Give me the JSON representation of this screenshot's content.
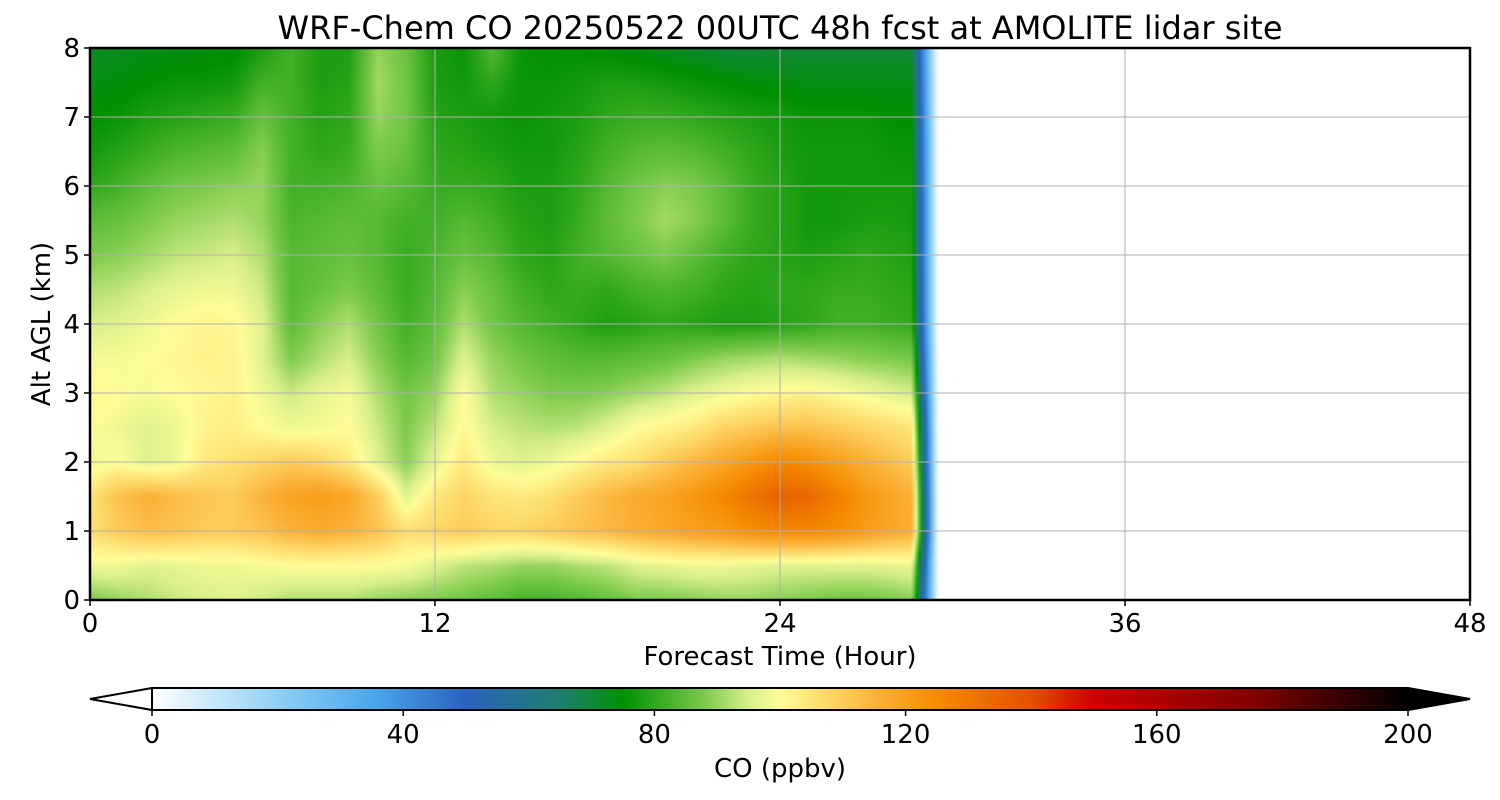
{
  "chart_data": {
    "type": "heatmap",
    "title": "WRF-Chem CO  20250522 00UTC 48h fcst at AMOLITE lidar site",
    "xlabel": "Forecast Time (Hour)",
    "ylabel": "Alt AGL (km)",
    "xlim": [
      0,
      48
    ],
    "ylim": [
      0,
      8
    ],
    "xticks": [
      0,
      12,
      24,
      36,
      48
    ],
    "yticks": [
      0,
      1,
      2,
      3,
      4,
      5,
      6,
      7,
      8
    ],
    "grid": true,
    "data_end_hour": 29.5,
    "colorbar": {
      "label": "CO  (ppbv)",
      "vmin": 0,
      "vmax": 200,
      "ticks": [
        0,
        40,
        80,
        120,
        160,
        200
      ],
      "extend": "both",
      "orientation": "horizontal",
      "colormap_stops": [
        {
          "value": 0,
          "color": "#ffffff"
        },
        {
          "value": 20,
          "color": "#8fd0f5"
        },
        {
          "value": 35,
          "color": "#4aa8ec"
        },
        {
          "value": 50,
          "color": "#2a62bf"
        },
        {
          "value": 65,
          "color": "#1e7f6e"
        },
        {
          "value": 75,
          "color": "#009100"
        },
        {
          "value": 88,
          "color": "#7cca4c"
        },
        {
          "value": 95,
          "color": "#d8ef8a"
        },
        {
          "value": 100,
          "color": "#fffd98"
        },
        {
          "value": 115,
          "color": "#fbb33a"
        },
        {
          "value": 125,
          "color": "#f58c00"
        },
        {
          "value": 140,
          "color": "#e45000"
        },
        {
          "value": 150,
          "color": "#cc0000"
        },
        {
          "value": 175,
          "color": "#820000"
        },
        {
          "value": 200,
          "color": "#000000"
        }
      ]
    },
    "altitudes_km": [
      0,
      0.5,
      1,
      1.5,
      2,
      2.5,
      3,
      3.5,
      4,
      4.5,
      5,
      5.5,
      6,
      6.5,
      7,
      7.5,
      8
    ],
    "hours": [
      0,
      1,
      2,
      3,
      4,
      5,
      6,
      7,
      8,
      9,
      10,
      11,
      12,
      13,
      14,
      15,
      16,
      17,
      18,
      19,
      20,
      21,
      22,
      23,
      24,
      25,
      26,
      27,
      28,
      29
    ],
    "values_ppbv": [
      [
        88,
        90,
        92,
        94,
        95,
        96,
        94,
        92,
        92,
        92,
        90,
        89,
        88,
        87,
        85,
        83,
        83,
        84,
        86,
        88,
        88,
        89,
        90,
        90,
        89,
        88,
        87,
        87,
        88,
        90
      ],
      [
        98,
        98,
        96,
        97,
        98,
        98,
        99,
        100,
        100,
        100,
        100,
        99,
        96,
        93,
        92,
        90,
        90,
        92,
        93,
        96,
        97,
        98,
        98,
        97,
        96,
        96,
        96,
        96,
        97,
        98
      ],
      [
        106,
        110,
        113,
        112,
        110,
        110,
        112,
        115,
        117,
        115,
        112,
        106,
        108,
        110,
        108,
        108,
        110,
        112,
        114,
        116,
        118,
        120,
        121,
        124,
        126,
        126,
        124,
        121,
        118,
        115
      ],
      [
        105,
        112,
        116,
        113,
        111,
        110,
        115,
        119,
        121,
        118,
        110,
        96,
        104,
        108,
        105,
        104,
        106,
        110,
        114,
        117,
        119,
        122,
        126,
        131,
        136,
        134,
        128,
        122,
        118,
        114
      ],
      [
        98,
        100,
        96,
        98,
        104,
        106,
        108,
        110,
        108,
        104,
        96,
        89,
        97,
        104,
        98,
        96,
        98,
        101,
        104,
        106,
        110,
        114,
        118,
        122,
        126,
        124,
        120,
        116,
        112,
        108
      ],
      [
        100,
        98,
        96,
        98,
        102,
        103,
        100,
        98,
        99,
        100,
        94,
        88,
        93,
        101,
        95,
        93,
        92,
        93,
        96,
        100,
        102,
        104,
        108,
        110,
        112,
        112,
        110,
        108,
        106,
        104
      ],
      [
        101,
        100,
        99,
        100,
        101,
        102,
        98,
        94,
        97,
        99,
        92,
        87,
        90,
        100,
        92,
        90,
        88,
        88,
        89,
        91,
        93,
        96,
        98,
        100,
        101,
        102,
        100,
        98,
        96,
        94
      ],
      [
        99,
        99,
        100,
        101,
        102,
        102,
        96,
        88,
        92,
        95,
        89,
        84,
        87,
        96,
        90,
        87,
        85,
        84,
        84,
        85,
        86,
        88,
        90,
        91,
        92,
        91,
        90,
        89,
        88,
        87
      ],
      [
        95,
        96,
        98,
        100,
        102,
        101,
        96,
        85,
        89,
        92,
        87,
        82,
        85,
        92,
        87,
        84,
        82,
        80,
        78,
        79,
        80,
        79,
        78,
        78,
        79,
        80,
        82,
        82,
        81,
        80
      ],
      [
        92,
        93,
        95,
        97,
        98,
        98,
        94,
        84,
        86,
        88,
        85,
        81,
        84,
        89,
        86,
        82,
        80,
        81,
        80,
        82,
        83,
        82,
        80,
        79,
        80,
        80,
        81,
        81,
        80,
        79
      ],
      [
        88,
        89,
        91,
        93,
        94,
        95,
        92,
        84,
        85,
        86,
        84,
        81,
        83,
        86,
        84,
        80,
        79,
        82,
        84,
        86,
        88,
        85,
        82,
        80,
        79,
        78,
        79,
        80,
        79,
        78
      ],
      [
        85,
        86,
        88,
        90,
        91,
        92,
        90,
        83,
        84,
        85,
        84,
        82,
        82,
        84,
        82,
        79,
        78,
        81,
        85,
        88,
        91,
        89,
        85,
        81,
        79,
        77,
        77,
        78,
        78,
        77
      ],
      [
        80,
        82,
        85,
        87,
        88,
        89,
        90,
        82,
        82,
        83,
        86,
        84,
        81,
        81,
        80,
        78,
        78,
        80,
        84,
        87,
        89,
        88,
        85,
        81,
        79,
        77,
        77,
        77,
        77,
        77
      ],
      [
        77,
        79,
        81,
        83,
        84,
        85,
        89,
        82,
        80,
        81,
        88,
        86,
        80,
        79,
        78,
        77,
        77,
        79,
        82,
        84,
        85,
        84,
        82,
        80,
        78,
        77,
        77,
        77,
        76,
        76
      ],
      [
        75,
        76,
        78,
        79,
        80,
        81,
        86,
        82,
        79,
        80,
        90,
        87,
        79,
        78,
        77,
        76,
        77,
        78,
        80,
        81,
        81,
        80,
        79,
        78,
        77,
        76,
        76,
        76,
        75,
        75
      ],
      [
        73,
        74,
        75,
        76,
        76,
        77,
        82,
        82,
        78,
        79,
        91,
        87,
        78,
        77,
        80,
        76,
        76,
        77,
        78,
        78,
        77,
        76,
        75,
        74,
        74,
        73,
        73,
        73,
        73,
        73
      ],
      [
        72,
        72,
        73,
        73,
        74,
        74,
        78,
        82,
        78,
        78,
        90,
        86,
        78,
        76,
        84,
        76,
        75,
        75,
        74,
        73,
        72,
        71,
        70,
        70,
        70,
        70,
        70,
        70,
        70,
        70
      ]
    ]
  }
}
